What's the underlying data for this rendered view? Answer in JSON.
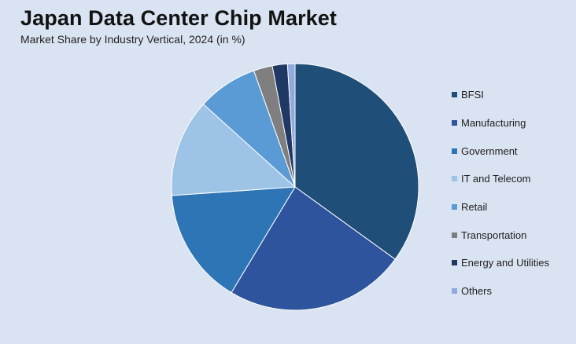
{
  "header": {
    "title": "Japan Data Center Chip Market",
    "subtitle": "Market Share by Industry Vertical, 2024 (in %)"
  },
  "chart_data": {
    "type": "pie",
    "title": "Japan Data Center Chip Market",
    "subtitle": "Market Share by Industry Vertical, 2024 (in %)",
    "legend_position": "right",
    "slices": [
      {
        "label": "BFSI",
        "value": 35.5,
        "color": "#1f4e79"
      },
      {
        "label": "Manufacturing",
        "value": 24.0,
        "color": "#2e549d"
      },
      {
        "label": "Government",
        "value": 15.5,
        "color": "#2e75b6"
      },
      {
        "label": "IT and Telecom",
        "value": 13.0,
        "color": "#9dc3e6"
      },
      {
        "label": "Retail",
        "value": 8.0,
        "color": "#5b9bd5"
      },
      {
        "label": "Transportation",
        "value": 2.5,
        "color": "#7f7f7f"
      },
      {
        "label": "Energy and Utilities",
        "value": 2.0,
        "color": "#203864"
      },
      {
        "label": "Others",
        "value": 1.0,
        "color": "#8faadc"
      }
    ]
  }
}
